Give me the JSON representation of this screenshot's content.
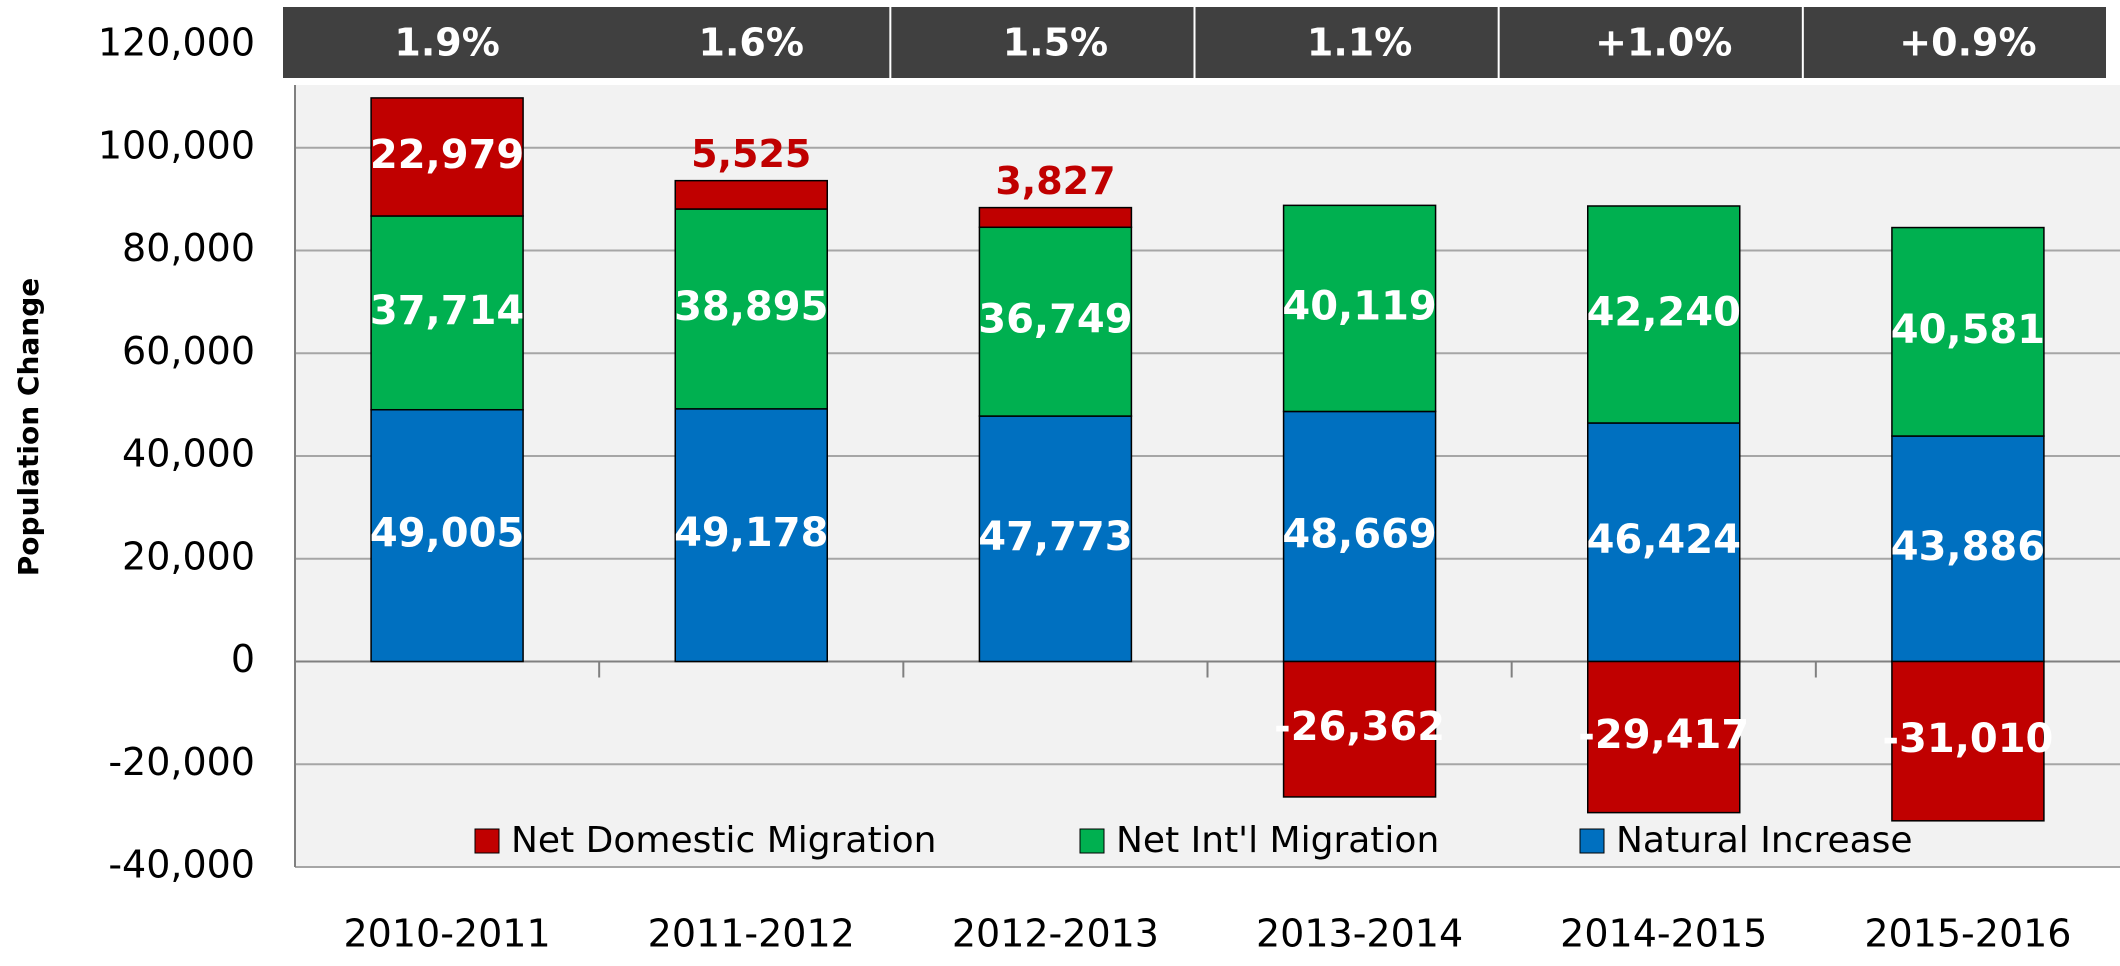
{
  "chart_data": {
    "type": "stacked_bar",
    "y_axis_label": "Population Change",
    "header_labels": [
      "1.9%",
      "1.6%",
      "1.5%",
      "1.1%",
      "+1.0%",
      "+0.9%"
    ],
    "categories": [
      "2010-2011",
      "2011-2012",
      "2012-2013",
      "2013-2014",
      "2014-2015",
      "2015-2016"
    ],
    "series": [
      {
        "name": "Natural Increase",
        "color": "#0070c0",
        "values": [
          49005,
          49178,
          47773,
          48669,
          46424,
          43886
        ],
        "value_labels": [
          "49,005",
          "49,178",
          "47,773",
          "48,669",
          "46,424",
          "43,886"
        ]
      },
      {
        "name": "Net Int'l Migration",
        "color": "#00b050",
        "values": [
          37714,
          38895,
          36749,
          40119,
          42240,
          40581
        ],
        "value_labels": [
          "37,714",
          "38,895",
          "36,749",
          "40,119",
          "42,240",
          "40,581"
        ]
      },
      {
        "name": "Net Domestic Migration",
        "color": "#c00000",
        "values": [
          22979,
          5525,
          3827,
          -26362,
          -29417,
          -31010
        ],
        "value_labels": [
          "22,979",
          "5,525",
          "3,827",
          "-26,362",
          "-29,417",
          "-31,010"
        ]
      }
    ],
    "ylim": [
      -40000,
      120000
    ],
    "yticks": [
      {
        "value": -40000,
        "label": "-40,000"
      },
      {
        "value": -20000,
        "label": "-20,000"
      },
      0,
      {
        "value": 20000,
        "label": "20,000"
      },
      {
        "value": 40000,
        "label": "40,000"
      },
      {
        "value": 60000,
        "label": "60,000"
      },
      {
        "value": 80000,
        "label": "80,000"
      },
      {
        "value": 100000,
        "label": "100,000"
      },
      {
        "value": 120000,
        "label": "120,000"
      }
    ],
    "grid": true
  }
}
